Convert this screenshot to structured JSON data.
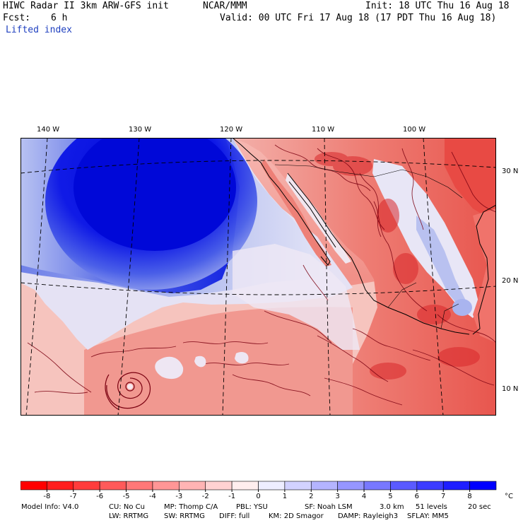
{
  "header": {
    "model": "HIWC Radar II 3km ARW-GFS init",
    "center": "NCAR/MMM",
    "init": "Init: 18 UTC Thu 16 Aug 18",
    "fcst_label": "Fcst:",
    "fcst_value": "6 h",
    "valid": "Valid: 00 UTC Fri 17 Aug 18 (17 PDT Thu 16 Aug 18)",
    "field": "Lifted index"
  },
  "longitude_labels": [
    "140 W",
    "130 W",
    "120 W",
    "110 W",
    "100 W"
  ],
  "latitude_labels": [
    "30 N",
    "20 N",
    "10 N"
  ],
  "colorbar": {
    "ticks": [
      "-8",
      "-7",
      "-6",
      "-5",
      "-4",
      "-3",
      "-2",
      "-1",
      "0",
      "1",
      "2",
      "3",
      "4",
      "5",
      "6",
      "7",
      "8"
    ],
    "unit": "°C",
    "colors": [
      "#ff0000",
      "#ff1e1e",
      "#ff3c3c",
      "#ff5a5a",
      "#ff7878",
      "#ff9696",
      "#ffb4b4",
      "#ffd2d2",
      "#ffeeee",
      "#eeeeff",
      "#d2d2ff",
      "#b4b4ff",
      "#9696ff",
      "#7878ff",
      "#5a5aff",
      "#3c3cff",
      "#1e1eff",
      "#0000ff"
    ]
  },
  "footer": {
    "line1": [
      "Model Info: V4.0",
      "CU: No Cu",
      "MP: Thomp C/A",
      "PBL: YSU",
      "SF: Noah LSM",
      "3.0 km",
      "51 levels",
      "20 sec"
    ],
    "line2": [
      "LW: RRTMG",
      "SW: RRTMG",
      "DIFF: full",
      "KM: 2D Smagor",
      "DAMP: Rayleigh3",
      "SFLAY: MM5"
    ]
  },
  "map_colors": {
    "ocean_positive": "#0a14e6",
    "ocean_positive_mid": "#4a5fe8",
    "ocean_positive_light": "#a8b4ef",
    "neutral": "#f3eef5",
    "negative_light": "#f6b3ad",
    "negative_mid": "#f08a80",
    "negative_dark": "#e8564e",
    "contour": "#7a0010"
  }
}
